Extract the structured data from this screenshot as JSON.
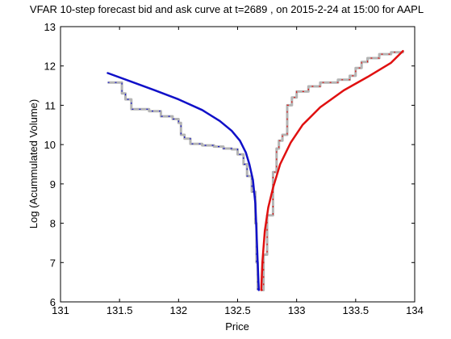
{
  "chart_data": {
    "type": "line",
    "title": "VFAR 10-step forecast bid and ask curve at t=2689 , on 2015-2-24 at 15:00 for AAPL",
    "xlabel": "Price",
    "ylabel": "Log (Acummulated Volume)",
    "xlim": [
      131,
      134
    ],
    "ylim": [
      6,
      13
    ],
    "xticks": [
      131,
      131.5,
      132,
      132.5,
      133,
      133.5,
      134
    ],
    "xtick_labels": [
      "131",
      "131.5",
      "132",
      "132.5",
      "133",
      "133.5",
      "134"
    ],
    "yticks": [
      6,
      7,
      8,
      9,
      10,
      11,
      12,
      13
    ],
    "ytick_labels": [
      "6",
      "7",
      "8",
      "9",
      "10",
      "11",
      "12",
      "13"
    ],
    "grid": false,
    "series": [
      {
        "key": "bid_forecast",
        "color": "#1010c8",
        "style": "solid",
        "points": [
          [
            131.4,
            11.82
          ],
          [
            131.6,
            11.6
          ],
          [
            131.8,
            11.38
          ],
          [
            132.0,
            11.15
          ],
          [
            132.2,
            10.88
          ],
          [
            132.35,
            10.6
          ],
          [
            132.45,
            10.35
          ],
          [
            132.52,
            10.1
          ],
          [
            132.57,
            9.8
          ],
          [
            132.6,
            9.5
          ],
          [
            132.63,
            9.1
          ],
          [
            132.65,
            8.5
          ],
          [
            132.66,
            7.8
          ],
          [
            132.67,
            7.0
          ],
          [
            132.68,
            6.3
          ]
        ]
      },
      {
        "key": "ask_forecast",
        "color": "#e01010",
        "style": "solid",
        "points": [
          [
            132.7,
            6.3
          ],
          [
            132.71,
            7.0
          ],
          [
            132.73,
            7.8
          ],
          [
            132.76,
            8.4
          ],
          [
            132.8,
            8.9
          ],
          [
            132.86,
            9.5
          ],
          [
            132.95,
            10.05
          ],
          [
            133.05,
            10.5
          ],
          [
            133.2,
            10.95
          ],
          [
            133.4,
            11.38
          ],
          [
            133.6,
            11.72
          ],
          [
            133.8,
            12.08
          ],
          [
            133.9,
            12.38
          ]
        ]
      },
      {
        "key": "bid_actual",
        "color": "#b4b4b4",
        "marker_color": "#1010c8",
        "style": "step",
        "points": [
          [
            131.4,
            11.58
          ],
          [
            131.5,
            11.58
          ],
          [
            131.52,
            11.3
          ],
          [
            131.55,
            11.15
          ],
          [
            131.6,
            10.9
          ],
          [
            131.75,
            10.85
          ],
          [
            131.85,
            10.72
          ],
          [
            131.95,
            10.65
          ],
          [
            132.0,
            10.55
          ],
          [
            132.02,
            10.25
          ],
          [
            132.05,
            10.15
          ],
          [
            132.1,
            10.02
          ],
          [
            132.2,
            9.98
          ],
          [
            132.3,
            9.95
          ],
          [
            132.38,
            9.9
          ],
          [
            132.45,
            9.88
          ],
          [
            132.5,
            9.75
          ],
          [
            132.55,
            9.5
          ],
          [
            132.58,
            9.2
          ],
          [
            132.62,
            8.8
          ],
          [
            132.65,
            8.0
          ],
          [
            132.66,
            7.0
          ],
          [
            132.67,
            6.3
          ]
        ]
      },
      {
        "key": "ask_actual",
        "color": "#b4b4b4",
        "marker_color": "#e01010",
        "style": "step",
        "points": [
          [
            132.7,
            6.3
          ],
          [
            132.72,
            7.2
          ],
          [
            132.75,
            8.2
          ],
          [
            132.8,
            9.3
          ],
          [
            132.83,
            9.9
          ],
          [
            132.85,
            10.1
          ],
          [
            132.88,
            10.25
          ],
          [
            132.92,
            11.0
          ],
          [
            132.96,
            11.2
          ],
          [
            133.0,
            11.35
          ],
          [
            133.1,
            11.48
          ],
          [
            133.2,
            11.58
          ],
          [
            133.35,
            11.65
          ],
          [
            133.45,
            11.75
          ],
          [
            133.5,
            11.95
          ],
          [
            133.55,
            12.1
          ],
          [
            133.6,
            12.2
          ],
          [
            133.7,
            12.3
          ],
          [
            133.8,
            12.35
          ],
          [
            133.9,
            12.38
          ]
        ]
      }
    ]
  }
}
